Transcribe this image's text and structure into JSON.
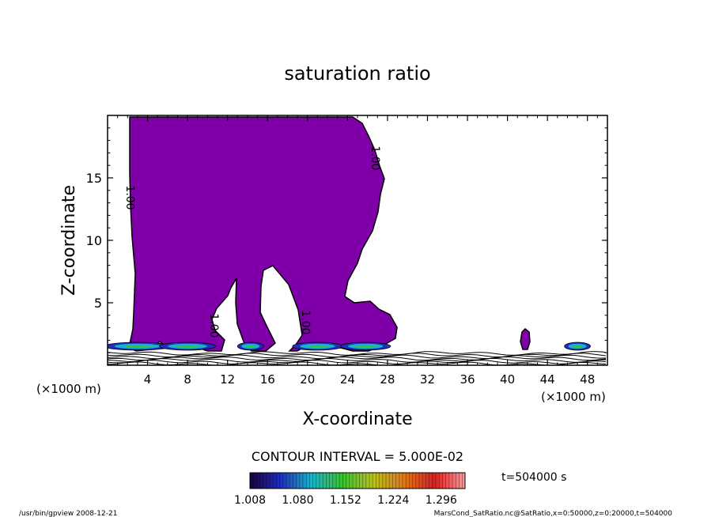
{
  "chart_data": {
    "type": "contour",
    "title": "saturation ratio",
    "xlabel": "X-coordinate",
    "ylabel": "Z-coordinate",
    "x_unit": "(×1000 m)",
    "y_unit": "(×1000 m)",
    "xlim": [
      0,
      50
    ],
    "ylim": [
      0,
      20
    ],
    "x_ticks": [
      4,
      8,
      12,
      16,
      20,
      24,
      28,
      32,
      36,
      40,
      44,
      48
    ],
    "y_ticks": [
      5,
      10,
      15
    ],
    "contour_interval_text": "CONTOUR INTERVAL = 5.000E-02",
    "time_text": "t=504000 s",
    "colorbar": {
      "labels": [
        "1.008",
        "1.080",
        "1.152",
        "1.224",
        "1.296"
      ],
      "min": 1.008,
      "max": 1.332,
      "colors": [
        "#1a0040",
        "#1f2fbf",
        "#19b3c9",
        "#38c233",
        "#b8c21e",
        "#e07a1a",
        "#d92020",
        "#ff9a9a"
      ]
    },
    "fill_color": "#7f00a8",
    "contour_labels": [
      "1.00",
      "1.00",
      "1.00",
      "1.00"
    ],
    "contour_label_values": [
      1.0,
      1.0,
      1.0,
      1.0
    ],
    "footer_left": "/usr/bin/gpview   2008-12-21",
    "footer_right": "MarsCond_SatRatio.nc@SatRatio,x=0:50000,z=0:20000,t=504000"
  }
}
